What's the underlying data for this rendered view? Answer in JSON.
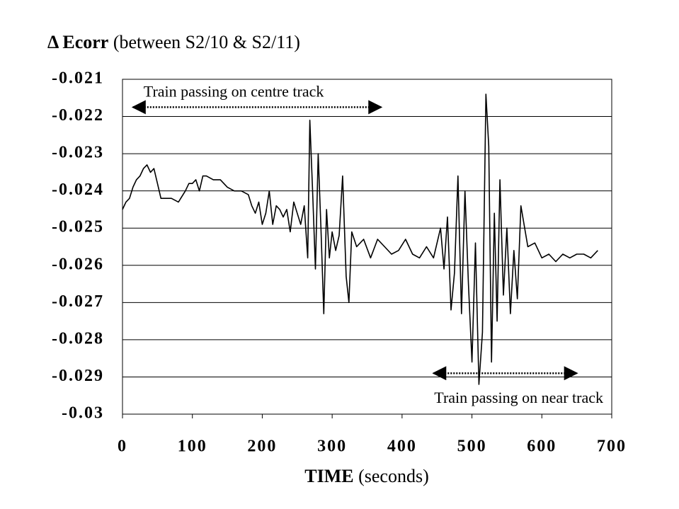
{
  "chart_data": {
    "type": "line",
    "title": "Δ Ecorr",
    "title_note": "(between S2/10 & S2/11)",
    "xlabel": "TIME",
    "xlabel_note": "(seconds)",
    "xlim": [
      0,
      700
    ],
    "xticks": [
      0,
      100,
      200,
      300,
      400,
      500,
      600,
      700
    ],
    "ylim": [
      -0.03,
      -0.021
    ],
    "yticks": [
      -0.021,
      -0.022,
      -0.023,
      -0.024,
      -0.025,
      -0.026,
      -0.027,
      -0.028,
      -0.029,
      -0.03
    ],
    "grid": true,
    "annotations": [
      {
        "text": "Train passing on centre track",
        "x": [
          15,
          370
        ],
        "y": -0.02175
      },
      {
        "text": "Train passing on near track",
        "x": [
          445,
          650
        ],
        "y": -0.0289
      }
    ],
    "series": [
      {
        "color": "#000000",
        "x": [
          0,
          5,
          10,
          15,
          20,
          25,
          30,
          35,
          40,
          45,
          50,
          55,
          60,
          70,
          80,
          90,
          95,
          100,
          105,
          110,
          115,
          120,
          130,
          140,
          150,
          160,
          170,
          180,
          185,
          190,
          195,
          200,
          205,
          210,
          215,
          220,
          225,
          230,
          235,
          240,
          245,
          250,
          255,
          260,
          265,
          268,
          272,
          276,
          280,
          284,
          288,
          292,
          296,
          300,
          305,
          310,
          315,
          320,
          324,
          328,
          335,
          345,
          355,
          365,
          375,
          385,
          395,
          405,
          415,
          425,
          435,
          445,
          455,
          460,
          465,
          470,
          475,
          480,
          485,
          490,
          495,
          500,
          505,
          510,
          515,
          520,
          524,
          528,
          532,
          536,
          540,
          545,
          550,
          555,
          560,
          565,
          570,
          580,
          590,
          600,
          610,
          620,
          630,
          640,
          650,
          660,
          670,
          680
        ],
        "values": [
          -0.0245,
          -0.0243,
          -0.0242,
          -0.0239,
          -0.0237,
          -0.0236,
          -0.0234,
          -0.0233,
          -0.0235,
          -0.0234,
          -0.0238,
          -0.0242,
          -0.0242,
          -0.0242,
          -0.0243,
          -0.024,
          -0.0238,
          -0.0238,
          -0.0237,
          -0.024,
          -0.0236,
          -0.0236,
          -0.0237,
          -0.0237,
          -0.0239,
          -0.024,
          -0.024,
          -0.0241,
          -0.0244,
          -0.0246,
          -0.0243,
          -0.0249,
          -0.0246,
          -0.024,
          -0.0249,
          -0.0244,
          -0.0245,
          -0.0247,
          -0.0245,
          -0.0251,
          -0.0243,
          -0.0246,
          -0.0249,
          -0.0244,
          -0.0258,
          -0.0221,
          -0.024,
          -0.0261,
          -0.023,
          -0.025,
          -0.0273,
          -0.0245,
          -0.0258,
          -0.0251,
          -0.0256,
          -0.0252,
          -0.0236,
          -0.0263,
          -0.027,
          -0.0251,
          -0.0255,
          -0.0253,
          -0.0258,
          -0.0253,
          -0.0255,
          -0.0257,
          -0.0256,
          -0.0253,
          -0.0257,
          -0.0258,
          -0.0255,
          -0.0258,
          -0.025,
          -0.0261,
          -0.0247,
          -0.0272,
          -0.0262,
          -0.0236,
          -0.0273,
          -0.024,
          -0.0265,
          -0.0286,
          -0.0254,
          -0.0292,
          -0.0278,
          -0.0214,
          -0.0228,
          -0.0286,
          -0.0246,
          -0.0275,
          -0.0237,
          -0.0268,
          -0.025,
          -0.0273,
          -0.0256,
          -0.0269,
          -0.0244,
          -0.0255,
          -0.0254,
          -0.0258,
          -0.0257,
          -0.0259,
          -0.0257,
          -0.0258,
          -0.0257,
          -0.0257,
          -0.0258,
          -0.0256
        ]
      }
    ]
  }
}
